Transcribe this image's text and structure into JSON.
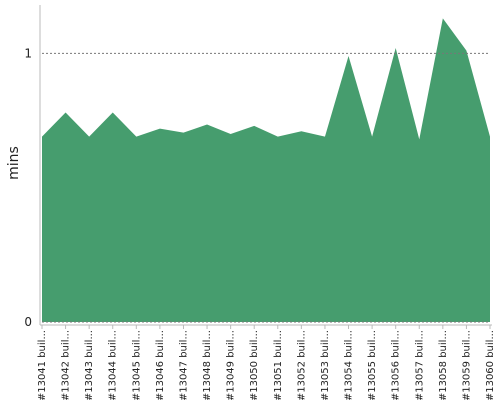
{
  "chart_data": {
    "type": "area",
    "y_label": "mins",
    "categories": [
      "#13041 buil...",
      "#13042 buil...",
      "#13043 buil...",
      "#13044 buil...",
      "#13045 buil...",
      "#13046 buil...",
      "#13047 buil...",
      "#13048 buil...",
      "#13049 buil...",
      "#13050 buil...",
      "#13051 buil...",
      "#13052 buil...",
      "#13053 buil...",
      "#13054 buil...",
      "#13055 buil...",
      "#13056 buil...",
      "#13057 buil...",
      "#13058 buil...",
      "#13059 buil...",
      "#13060 buil..."
    ],
    "values": [
      0.69,
      0.78,
      0.69,
      0.78,
      0.69,
      0.72,
      0.705,
      0.735,
      0.7,
      0.73,
      0.69,
      0.71,
      0.69,
      0.99,
      0.69,
      1.02,
      0.68,
      1.13,
      1.01,
      0.69
    ],
    "color": "#469d6e",
    "ylim": [
      0,
      1.18
    ],
    "yticks": [
      0,
      1
    ],
    "grid": true
  }
}
